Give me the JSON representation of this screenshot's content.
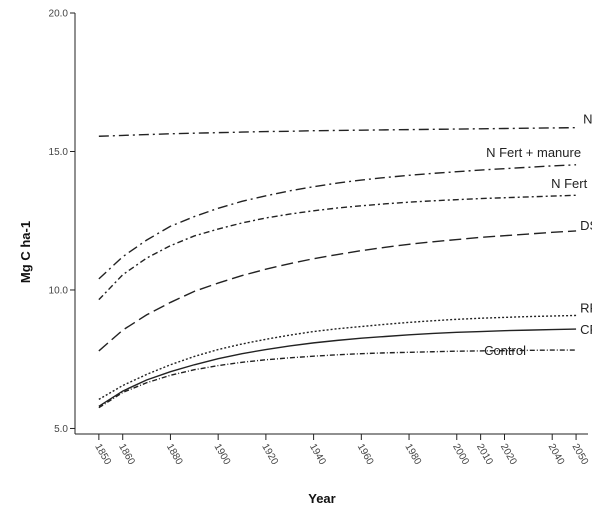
{
  "chart_data": {
    "type": "line",
    "title": "",
    "xlabel": "Year",
    "ylabel": "Mg C ha-1",
    "xlim": [
      1840,
      2055
    ],
    "ylim": [
      4.8,
      20.0
    ],
    "y_ticks": [
      5.0,
      10.0,
      15.0,
      20.0
    ],
    "y_tick_labels": [
      "5.0",
      "10.0",
      "15.0",
      "20.0"
    ],
    "x_ticks": [
      1850,
      1860,
      1880,
      1900,
      1920,
      1940,
      1960,
      1980,
      2000,
      2010,
      2020,
      2040,
      2050
    ],
    "x_tick_labels": [
      "1850",
      "1860",
      "1880",
      "1900",
      "1920",
      "1940",
      "1960",
      "1980",
      "2000",
      "2010",
      "2020",
      "2040",
      "2050"
    ],
    "grid": false,
    "legend": "inline-labels-right",
    "x": [
      1850,
      1860,
      1870,
      1880,
      1890,
      1900,
      1910,
      1920,
      1930,
      1940,
      1950,
      1960,
      1970,
      1980,
      1990,
      2000,
      2010,
      2020,
      2030,
      2040,
      2050
    ],
    "series": [
      {
        "name": "NF",
        "dash": "10 4 2 4",
        "values": [
          15.55,
          15.58,
          15.61,
          15.64,
          15.66,
          15.68,
          15.7,
          15.72,
          15.73,
          15.75,
          15.76,
          15.77,
          15.78,
          15.79,
          15.8,
          15.81,
          15.82,
          15.83,
          15.84,
          15.85,
          15.86
        ]
      },
      {
        "name": "N Fert + manure",
        "dash": "10 4 2 4",
        "values": [
          10.4,
          11.2,
          11.8,
          12.3,
          12.65,
          12.95,
          13.2,
          13.4,
          13.58,
          13.73,
          13.86,
          13.97,
          14.06,
          14.14,
          14.21,
          14.27,
          14.33,
          14.38,
          14.43,
          14.48,
          14.52
        ]
      },
      {
        "name": "N Fert",
        "dash": "6 3 2 3",
        "values": [
          9.65,
          10.55,
          11.15,
          11.6,
          11.95,
          12.2,
          12.42,
          12.6,
          12.74,
          12.86,
          12.96,
          13.04,
          13.11,
          13.17,
          13.22,
          13.26,
          13.3,
          13.33,
          13.36,
          13.39,
          13.42
        ]
      },
      {
        "name": "DS",
        "dash": "12 5",
        "values": [
          7.8,
          8.55,
          9.1,
          9.55,
          9.95,
          10.25,
          10.52,
          10.75,
          10.95,
          11.13,
          11.28,
          11.42,
          11.54,
          11.65,
          11.74,
          11.82,
          11.9,
          11.96,
          12.02,
          12.08,
          12.13
        ]
      },
      {
        "name": "RP",
        "dash": "2 2",
        "values": [
          6.05,
          6.55,
          6.95,
          7.3,
          7.6,
          7.85,
          8.05,
          8.22,
          8.37,
          8.5,
          8.6,
          8.68,
          8.76,
          8.83,
          8.89,
          8.94,
          8.98,
          9.01,
          9.04,
          9.06,
          9.08
        ]
      },
      {
        "name": "CF",
        "dash": "",
        "values": [
          5.8,
          6.35,
          6.75,
          7.05,
          7.3,
          7.52,
          7.7,
          7.85,
          7.98,
          8.09,
          8.18,
          8.26,
          8.32,
          8.38,
          8.43,
          8.47,
          8.5,
          8.53,
          8.55,
          8.57,
          8.59
        ]
      },
      {
        "name": "Control",
        "dash": "5 2 1 2",
        "values": [
          5.75,
          6.3,
          6.65,
          6.92,
          7.12,
          7.27,
          7.39,
          7.48,
          7.55,
          7.61,
          7.66,
          7.7,
          7.73,
          7.75,
          7.77,
          7.79,
          7.8,
          7.81,
          7.82,
          7.83,
          7.83
        ]
      }
    ]
  }
}
